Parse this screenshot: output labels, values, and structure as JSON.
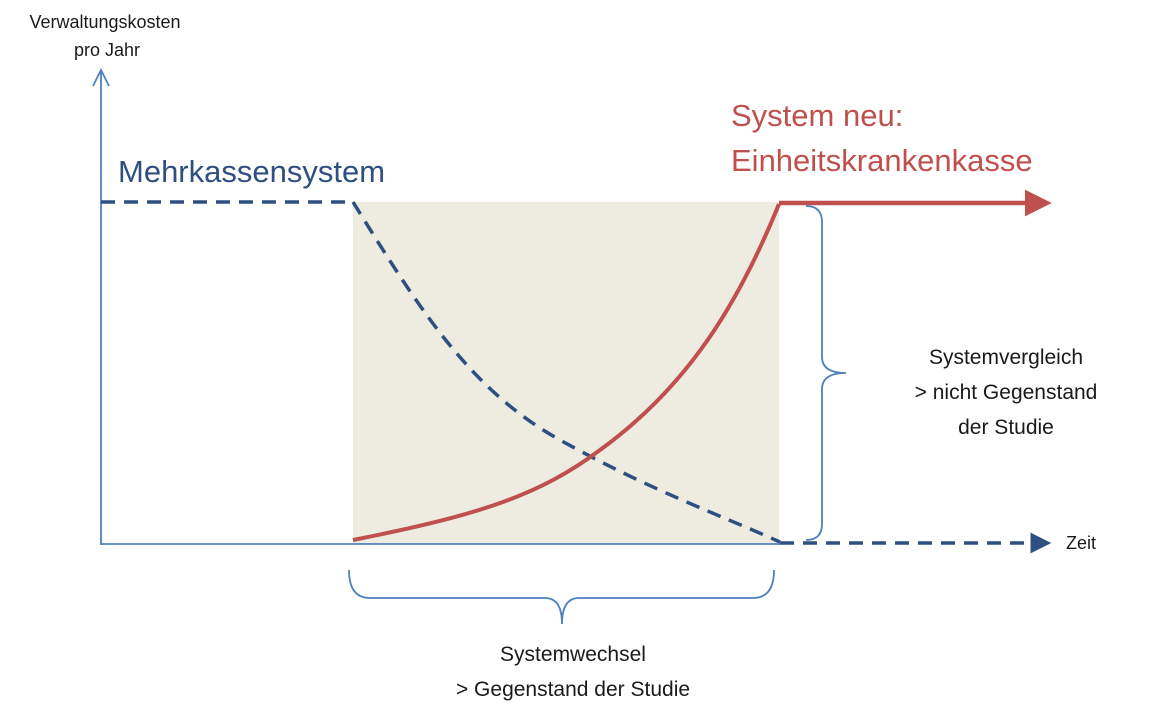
{
  "axes": {
    "y_label_line1": "Verwaltungskosten",
    "y_label_line2": "pro Jahr",
    "x_label": "Zeit"
  },
  "old_system": {
    "label": "Mehrkassensystem",
    "color": "#2e4f7f"
  },
  "new_system": {
    "label_line1": "System neu:",
    "label_line2": "Einheitskrankenkasse",
    "color": "#c0504d"
  },
  "transition_area": {
    "color": "#eeebe1"
  },
  "annotations": {
    "comparison_line1": "Systemvergleich",
    "comparison_line2": "> nicht Gegenstand",
    "comparison_line3": "der Studie",
    "change_line1": "Systemwechsel",
    "change_line2": "> Gegenstand der Studie"
  },
  "colors": {
    "axis": "#4f81bd",
    "brace": "#4f81bd",
    "text": "#1a1a1a"
  }
}
